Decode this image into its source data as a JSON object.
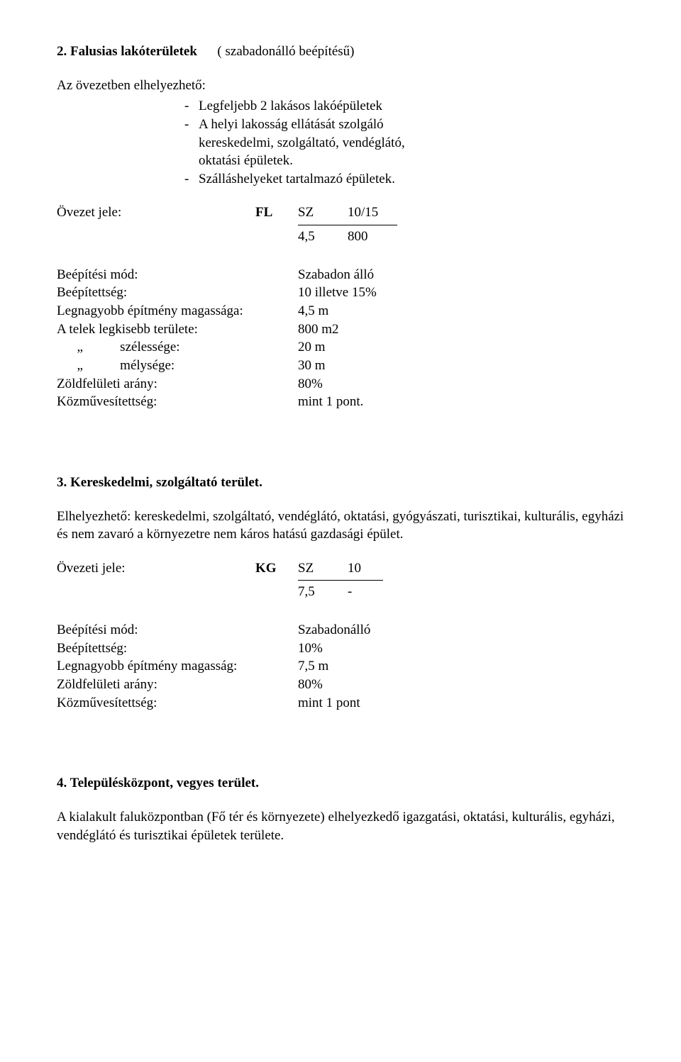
{
  "s2": {
    "title_prefix": "2. Falusias lakóterületek",
    "title_suffix": "( szabadonálló beépítésű)",
    "intro": "Az övezetben elhelyezhető:",
    "b1": "Legfeljebb 2 lakásos lakóépületek",
    "b2": "A helyi lakosság ellátását szolgáló",
    "b2b": "kereskedelmi, szolgáltató, vendéglátó,",
    "b2c": "oktatási épületek.",
    "b3": "Szálláshelyeket tartalmazó épületek.",
    "zone_label": "Övezet jele:",
    "code": "FL",
    "c2": "SZ",
    "c3": "10/15",
    "f1": "4,5",
    "f2": "800",
    "r1l": "Beépítési mód:",
    "r1v": "Szabadon álló",
    "r2l": "Beépítettség:",
    "r2v": "10 illetve 15%",
    "r3l": "Legnagyobb építmény magassága:",
    "r3v": "4,5 m",
    "r4l": "A telek legkisebb területe:",
    "r4v": "800 m2",
    "r5l": "      „           szélessége:",
    "r5v": "20 m",
    "r6l": "      „           mélysége:",
    "r6v": "30 m",
    "r7l": "Zöldfelületi arány:",
    "r7v": "80%",
    "r8l": "Közművesítettség:",
    "r8v": "mint 1 pont."
  },
  "s3": {
    "title": "3. Kereskedelmi, szolgáltató terület.",
    "para": "Elhelyezhető: kereskedelmi, szolgáltató, vendéglátó, oktatási, gyógyászati, turisztikai, kulturális, egyházi és nem zavaró a környezetre nem káros hatású gazdasági épület.",
    "zone_label": "Övezeti jele:",
    "code": "KG",
    "c2": "SZ",
    "c3": "10",
    "f1": "7,5",
    "f2": "-",
    "r1l": "Beépítési mód:",
    "r1v": "Szabadonálló",
    "r2l": "Beépítettség:",
    "r2v": "10%",
    "r3l": "Legnagyobb építmény magasság:",
    "r3v": "7,5 m",
    "r4l": "Zöldfelületi arány:",
    "r4v": "80%",
    "r5l": "Közművesítettség:",
    "r5v": "mint 1 pont"
  },
  "s4": {
    "title": "4. Településközpont, vegyes terület.",
    "para": "A kialakult faluközpontban (Fő tér és környezete) elhelyezkedő igazgatási, oktatási, kulturális, egyházi, vendéglátó és turisztikai épületek területe."
  },
  "dash": "-"
}
